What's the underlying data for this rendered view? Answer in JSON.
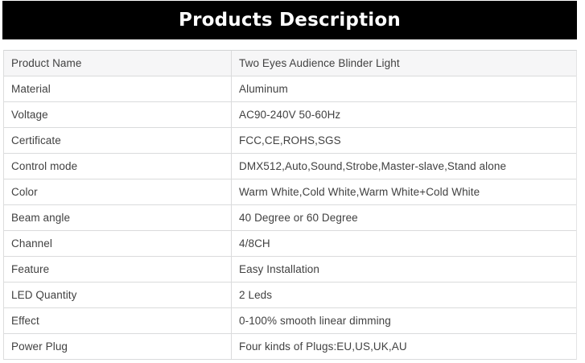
{
  "header": {
    "title": "Products Description",
    "background_color": "#000000",
    "text_color": "#ffffff"
  },
  "table": {
    "columns": [
      "attribute",
      "value"
    ],
    "first_row_background": "#f6f6f7",
    "border_color": "#dadbdc",
    "text_color": "#414141",
    "rows": [
      {
        "label": "Product Name",
        "value": "Two Eyes Audience Blinder Light"
      },
      {
        "label": "Material",
        "value": "Aluminum"
      },
      {
        "label": "Voltage",
        "value": "AC90-240V 50-60Hz"
      },
      {
        "label": "Certificate",
        "value": "FCC,CE,ROHS,SGS"
      },
      {
        "label": "Control mode",
        "value": "DMX512,Auto,Sound,Strobe,Master-slave,Stand alone"
      },
      {
        "label": "Color",
        "value": "Warm White,Cold White,Warm White+Cold White"
      },
      {
        "label": "Beam angle",
        "value": "40 Degree or 60 Degree"
      },
      {
        "label": "Channel",
        "value": "4/8CH"
      },
      {
        "label": "Feature",
        "value": "Easy Installation"
      },
      {
        "label": "LED Quantity",
        "value": "2 Leds"
      },
      {
        "label": "Effect",
        "value": "0-100% smooth linear dimming"
      },
      {
        "label": "Power Plug",
        "value": "Four kinds of Plugs:EU,US,UK,AU"
      }
    ]
  }
}
